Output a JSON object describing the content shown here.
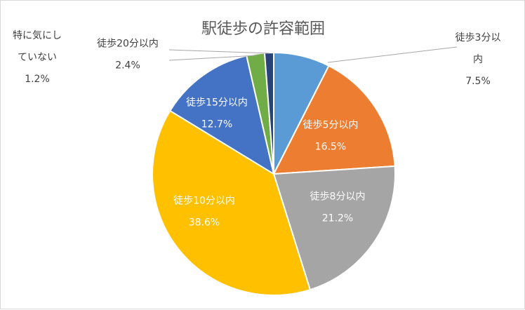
{
  "chart_data": {
    "type": "pie",
    "title": "駅徒歩の許容範囲",
    "categories": [
      "徒歩3分以内",
      "徒歩5分以内",
      "徒歩8分以内",
      "徒歩10分以内",
      "徒歩15分以内",
      "徒歩20分以内",
      "特に気にしていない"
    ],
    "values": [
      7.5,
      16.5,
      21.2,
      38.6,
      12.7,
      2.4,
      1.2
    ],
    "value_labels": [
      "7.5%",
      "16.5%",
      "21.2%",
      "38.6%",
      "12.7%",
      "2.4%",
      "1.2%"
    ],
    "label_lines": [
      [
        "徒歩3分以",
        "内"
      ],
      [
        "徒歩5分以内"
      ],
      [
        "徒歩8分以内"
      ],
      [
        "徒歩10分以内"
      ],
      [
        "徒歩15分以内"
      ],
      [
        "徒歩20分以内"
      ],
      [
        "特に気にし",
        "ていない"
      ]
    ],
    "colors": [
      "#5b9bd5",
      "#ed7d31",
      "#a5a5a5",
      "#ffc000",
      "#4472c4",
      "#70ad47",
      "#264478"
    ],
    "start_angle_deg": 0,
    "direction": "clockwise",
    "legend": "none"
  }
}
